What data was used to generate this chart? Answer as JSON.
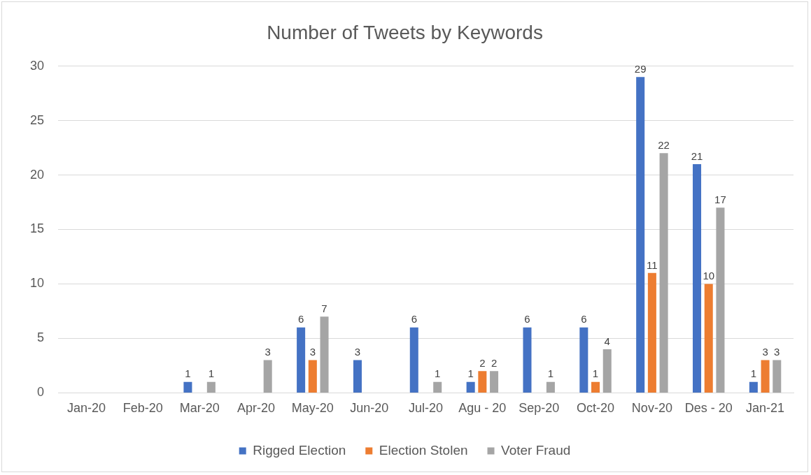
{
  "chart_data": {
    "type": "bar",
    "title": "Number of Tweets by Keywords",
    "categories": [
      "Jan-20",
      "Feb-20",
      "Mar-20",
      "Apr-20",
      "May-20",
      "Jun-20",
      "Jul-20",
      "Agu - 20",
      "Sep-20",
      "Oct-20",
      "Nov-20",
      "Des - 20",
      "Jan-21"
    ],
    "series": [
      {
        "name": "Rigged Election",
        "color": "#4472c4",
        "values": [
          null,
          null,
          1,
          null,
          6,
          3,
          6,
          1,
          6,
          6,
          29,
          21,
          1
        ]
      },
      {
        "name": "Election Stolen",
        "color": "#ed7d31",
        "values": [
          null,
          null,
          null,
          null,
          3,
          null,
          null,
          2,
          null,
          1,
          11,
          10,
          3
        ]
      },
      {
        "name": "Voter Fraud",
        "color": "#a5a5a5",
        "values": [
          null,
          null,
          1,
          3,
          7,
          null,
          1,
          2,
          1,
          4,
          22,
          17,
          3
        ]
      }
    ],
    "ylim": [
      0,
      30
    ],
    "yticks": [
      0,
      5,
      10,
      15,
      20,
      25,
      30
    ],
    "grid": "y",
    "legend": "bottom",
    "data_labels": true
  }
}
